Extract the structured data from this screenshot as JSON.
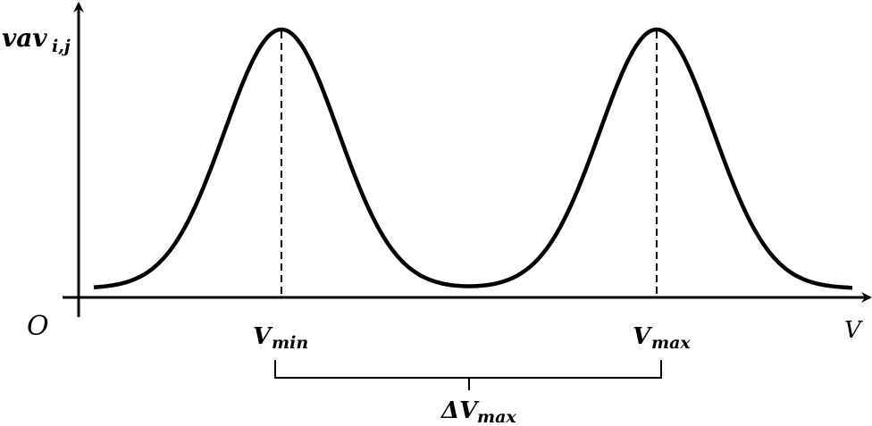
{
  "labels": {
    "y_axis": "vav",
    "y_axis_sub": "i,j",
    "origin": "O",
    "x_axis": "V",
    "v_min": "V",
    "v_min_sub": "min",
    "v_max": "V",
    "v_max_sub": "max",
    "delta": "ΔV",
    "delta_sub": "max"
  },
  "colors": {
    "stroke": "#000000",
    "background": "#ffffff"
  }
}
